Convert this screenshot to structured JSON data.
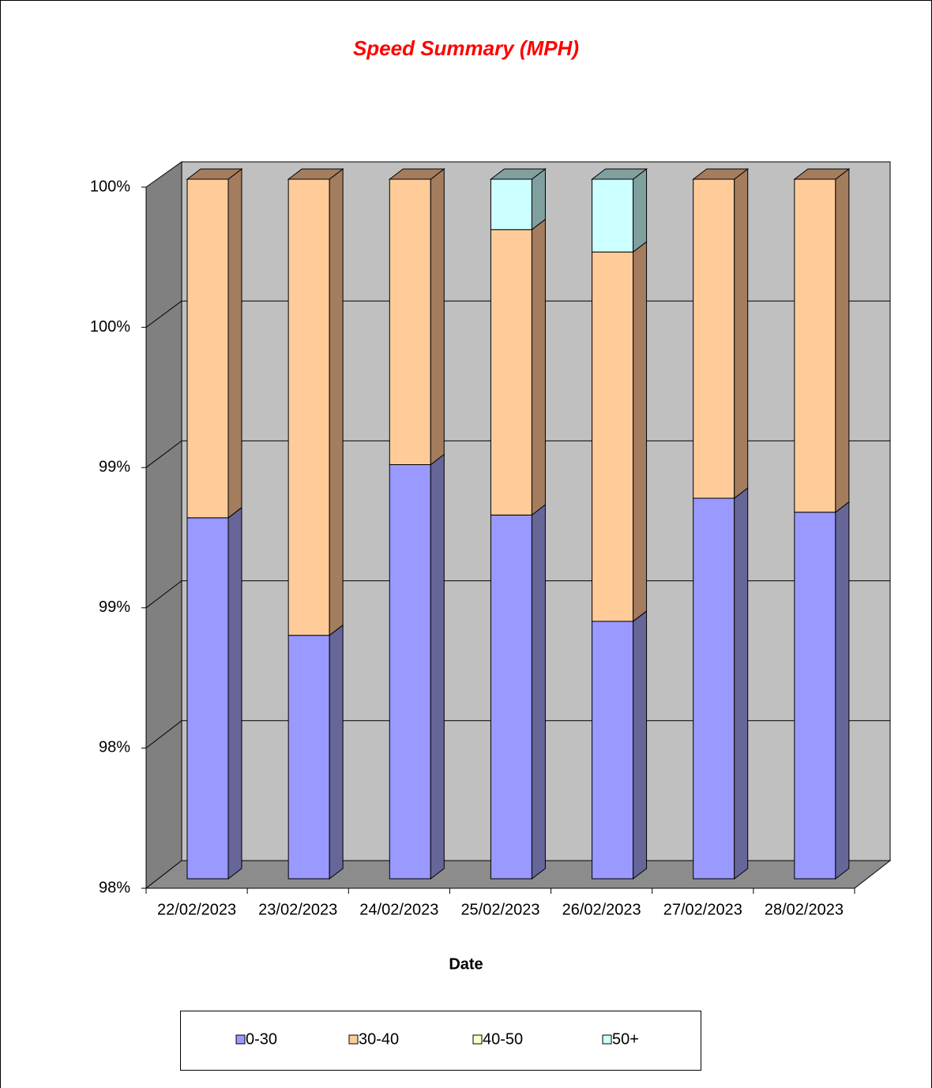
{
  "chart_data": {
    "type": "bar3d_stacked",
    "title": "Speed Summary (MPH)",
    "x_label": "Date",
    "categories": [
      "22/02/2023",
      "23/02/2023",
      "24/02/2023",
      "25/02/2023",
      "26/02/2023",
      "27/02/2023",
      "28/02/2023"
    ],
    "series": [
      {
        "name": "0-30",
        "color": "#9999ff",
        "side_color": "#666699",
        "values": [
          98.79,
          98.37,
          98.98,
          98.8,
          98.42,
          98.86,
          98.81
        ]
      },
      {
        "name": "30-40",
        "color": "#ffcc99",
        "side_color": "#a37d5e",
        "values": [
          1.21,
          1.63,
          1.02,
          1.02,
          1.32,
          1.14,
          1.19
        ]
      },
      {
        "name": "40-50",
        "color": "#ffffcc",
        "side_color": "#a3a37d",
        "values": [
          0,
          0,
          0,
          0,
          0,
          0,
          0
        ]
      },
      {
        "name": "50+",
        "color": "#ccffff",
        "side_color": "#80a0a0",
        "values": [
          0,
          0,
          0,
          0.18,
          0.26,
          0,
          0
        ]
      }
    ],
    "ylim": [
      97.5,
      100
    ],
    "yticks": [
      {
        "value": 97.5,
        "label": "98%"
      },
      {
        "value": 98,
        "label": "98%"
      },
      {
        "value": 98.5,
        "label": "99%"
      },
      {
        "value": 99,
        "label": "99%"
      },
      {
        "value": 99.5,
        "label": "100%"
      },
      {
        "value": 100,
        "label": "100%"
      }
    ],
    "grid": true
  }
}
